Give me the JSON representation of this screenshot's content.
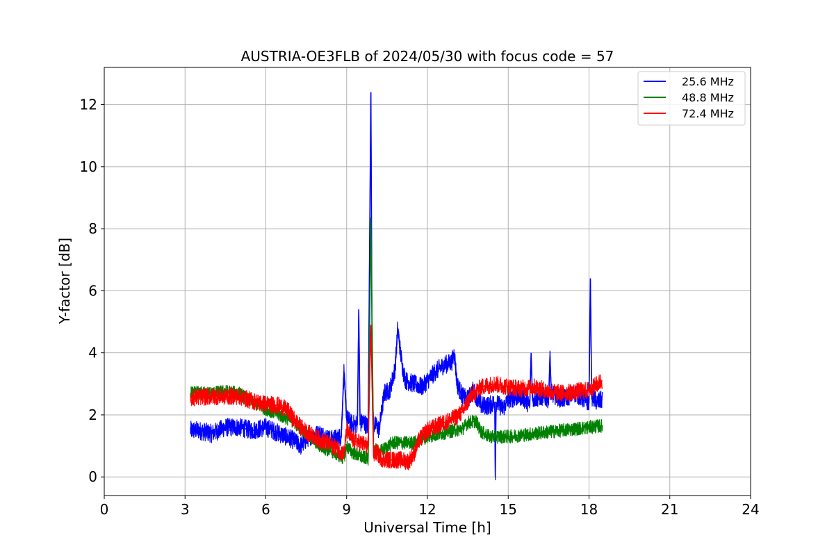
{
  "chart_data": {
    "type": "line",
    "title": "AUSTRIA-OE3FLB of 2024/05/30 with focus code = 57",
    "xlabel": "Universal Time [h]",
    "ylabel": "Y-factor [dB]",
    "xlim": [
      0,
      24
    ],
    "ylim": [
      -0.6,
      13.2
    ],
    "xticks": [
      0,
      3,
      6,
      9,
      12,
      15,
      18,
      21,
      24
    ],
    "yticks": [
      0,
      2,
      4,
      6,
      8,
      10,
      12
    ],
    "grid": true,
    "legend_position": "upper right",
    "series": [
      {
        "name": "25.6 MHz",
        "color": "#0000ff",
        "noise": 0.3,
        "x": [
          3.2,
          3.5,
          4.0,
          4.5,
          5.0,
          5.5,
          6.0,
          6.5,
          7.0,
          7.3,
          7.6,
          8.0,
          8.4,
          8.8,
          8.9,
          9.0,
          9.2,
          9.4,
          9.45,
          9.5,
          9.6,
          9.8,
          9.9,
          9.95,
          10.0,
          10.1,
          10.2,
          10.4,
          10.6,
          10.8,
          10.9,
          11.0,
          11.1,
          11.2,
          11.5,
          11.8,
          12.0,
          12.3,
          12.6,
          12.9,
          13.0,
          13.1,
          13.3,
          13.5,
          13.7,
          14.0,
          14.3,
          14.5,
          14.52,
          14.55,
          14.8,
          15.0,
          15.5,
          15.8,
          15.85,
          15.9,
          16.3,
          16.5,
          16.55,
          16.6,
          17.0,
          17.5,
          17.8,
          18.0,
          18.05,
          18.1,
          18.3,
          18.5
        ],
        "y": [
          1.5,
          1.5,
          1.4,
          1.6,
          1.6,
          1.5,
          1.6,
          1.4,
          1.2,
          1.0,
          1.3,
          1.4,
          1.2,
          1.3,
          3.4,
          1.9,
          1.7,
          1.7,
          5.4,
          1.7,
          1.8,
          1.6,
          12.4,
          3.0,
          1.6,
          1.7,
          1.5,
          2.7,
          2.8,
          3.5,
          4.8,
          4.0,
          3.4,
          3.1,
          3.0,
          2.9,
          3.1,
          3.4,
          3.6,
          3.7,
          4.0,
          3.0,
          2.6,
          2.5,
          2.8,
          2.3,
          2.3,
          2.4,
          0.0,
          2.4,
          2.2,
          2.5,
          2.6,
          2.3,
          4.0,
          2.5,
          2.6,
          2.5,
          3.9,
          2.7,
          2.5,
          2.7,
          2.5,
          2.4,
          6.4,
          2.6,
          2.4,
          2.5
        ]
      },
      {
        "name": "48.8 MHz",
        "color": "#008000",
        "noise": 0.22,
        "x": [
          3.2,
          4.0,
          4.5,
          5.0,
          5.5,
          6.0,
          6.5,
          7.0,
          7.5,
          8.0,
          8.5,
          8.9,
          9.0,
          9.2,
          9.5,
          9.8,
          9.9,
          10.0,
          10.2,
          10.4,
          10.7,
          11.0,
          11.5,
          12.0,
          12.5,
          13.0,
          13.3,
          13.5,
          13.8,
          14.0,
          14.3,
          15.0,
          15.5,
          16.0,
          16.5,
          17.0,
          17.5,
          18.0,
          18.5
        ],
        "y": [
          2.7,
          2.7,
          2.75,
          2.7,
          2.4,
          2.2,
          2.0,
          1.8,
          1.4,
          1.0,
          0.8,
          0.6,
          1.0,
          0.8,
          0.65,
          0.6,
          8.2,
          0.9,
          0.8,
          0.9,
          1.1,
          1.1,
          1.1,
          1.3,
          1.4,
          1.5,
          1.55,
          1.75,
          1.8,
          1.45,
          1.3,
          1.3,
          1.35,
          1.4,
          1.45,
          1.5,
          1.55,
          1.6,
          1.65
        ]
      },
      {
        "name": "72.4 MHz",
        "color": "#ff0000",
        "noise": 0.28,
        "x": [
          3.2,
          4.0,
          4.5,
          5.0,
          5.5,
          6.0,
          6.5,
          6.8,
          7.0,
          7.3,
          7.6,
          8.0,
          8.5,
          8.9,
          9.0,
          9.2,
          9.5,
          9.8,
          9.9,
          10.0,
          10.1,
          10.3,
          10.6,
          11.0,
          11.3,
          11.5,
          11.7,
          12.0,
          12.5,
          13.0,
          13.3,
          13.6,
          14.0,
          14.5,
          15.0,
          15.5,
          16.0,
          16.5,
          17.0,
          17.5,
          18.0,
          18.5
        ],
        "y": [
          2.55,
          2.6,
          2.6,
          2.6,
          2.45,
          2.35,
          2.3,
          2.15,
          1.9,
          1.6,
          1.4,
          1.2,
          1.0,
          0.75,
          1.5,
          1.2,
          1.1,
          1.0,
          4.9,
          0.7,
          0.8,
          0.6,
          0.55,
          0.55,
          0.5,
          0.75,
          1.2,
          1.5,
          1.7,
          1.9,
          2.1,
          2.6,
          2.9,
          3.0,
          2.9,
          2.85,
          2.9,
          2.75,
          2.7,
          2.75,
          2.8,
          3.1
        ]
      }
    ]
  }
}
